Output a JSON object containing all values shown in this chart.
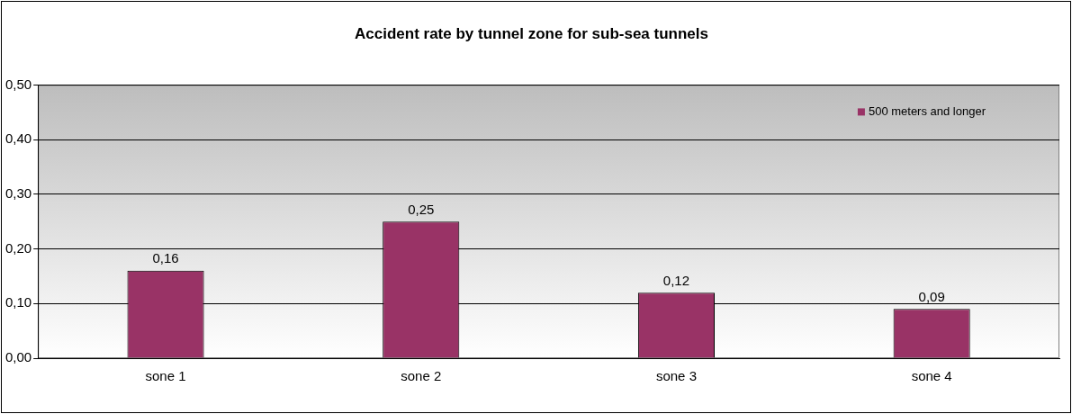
{
  "chart_data": {
    "type": "bar",
    "title": "Accident rate by tunnel zone for sub-sea tunnels",
    "categories": [
      "sone 1",
      "sone 2",
      "sone 3",
      "sone 4"
    ],
    "series": [
      {
        "name": "500 meters and longer",
        "color": "#993366",
        "values": [
          0.16,
          0.25,
          0.12,
          0.09
        ],
        "value_labels": [
          "0,16",
          "0,25",
          "0,12",
          "0,09"
        ]
      }
    ],
    "ylim": [
      0,
      0.5
    ],
    "yticks": [
      {
        "value": 0,
        "label": "0,00"
      },
      {
        "value": 0.1,
        "label": "0,10"
      },
      {
        "value": 0.2,
        "label": "0,20"
      },
      {
        "value": 0.3,
        "label": "0,30"
      },
      {
        "value": 0.4,
        "label": "0,40"
      },
      {
        "value": 0.5,
        "label": "0,50"
      }
    ],
    "grid": "y",
    "legend": "top right"
  }
}
